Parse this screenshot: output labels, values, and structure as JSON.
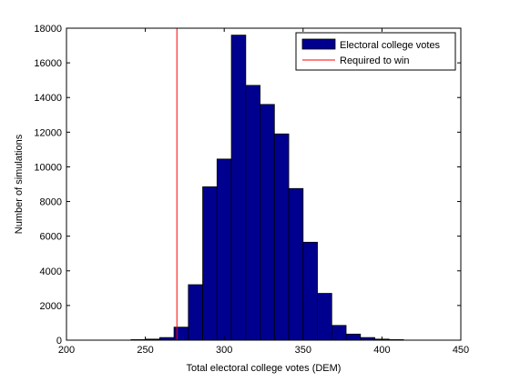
{
  "chart_data": {
    "type": "bar",
    "xlabel": "Total electoral college votes (DEM)",
    "ylabel": "Number of simulations",
    "xlim": [
      200,
      450
    ],
    "ylim": [
      0,
      18000
    ],
    "xticks": [
      200,
      250,
      300,
      350,
      400,
      450
    ],
    "yticks": [
      0,
      2000,
      4000,
      6000,
      8000,
      10000,
      12000,
      14000,
      16000,
      18000
    ],
    "bin_width": 9.09,
    "bins": [
      {
        "x0": 240.91,
        "value": 30
      },
      {
        "x0": 250.0,
        "value": 60
      },
      {
        "x0": 259.09,
        "value": 150
      },
      {
        "x0": 268.18,
        "value": 750
      },
      {
        "x0": 277.27,
        "value": 3200
      },
      {
        "x0": 286.36,
        "value": 8850
      },
      {
        "x0": 295.45,
        "value": 10450
      },
      {
        "x0": 304.55,
        "value": 17600
      },
      {
        "x0": 313.64,
        "value": 14700
      },
      {
        "x0": 322.73,
        "value": 13600
      },
      {
        "x0": 331.82,
        "value": 11900
      },
      {
        "x0": 340.91,
        "value": 8750
      },
      {
        "x0": 350.0,
        "value": 5650
      },
      {
        "x0": 359.09,
        "value": 2700
      },
      {
        "x0": 368.18,
        "value": 850
      },
      {
        "x0": 377.27,
        "value": 350
      },
      {
        "x0": 386.36,
        "value": 150
      },
      {
        "x0": 395.45,
        "value": 60
      },
      {
        "x0": 404.55,
        "value": 30
      }
    ],
    "threshold": 270,
    "series": [
      {
        "name": "Electoral college votes",
        "color": "#00008f"
      },
      {
        "name": "Required to win",
        "color": "#ff0000"
      }
    ],
    "legend_position": "top-right",
    "grid": false
  }
}
